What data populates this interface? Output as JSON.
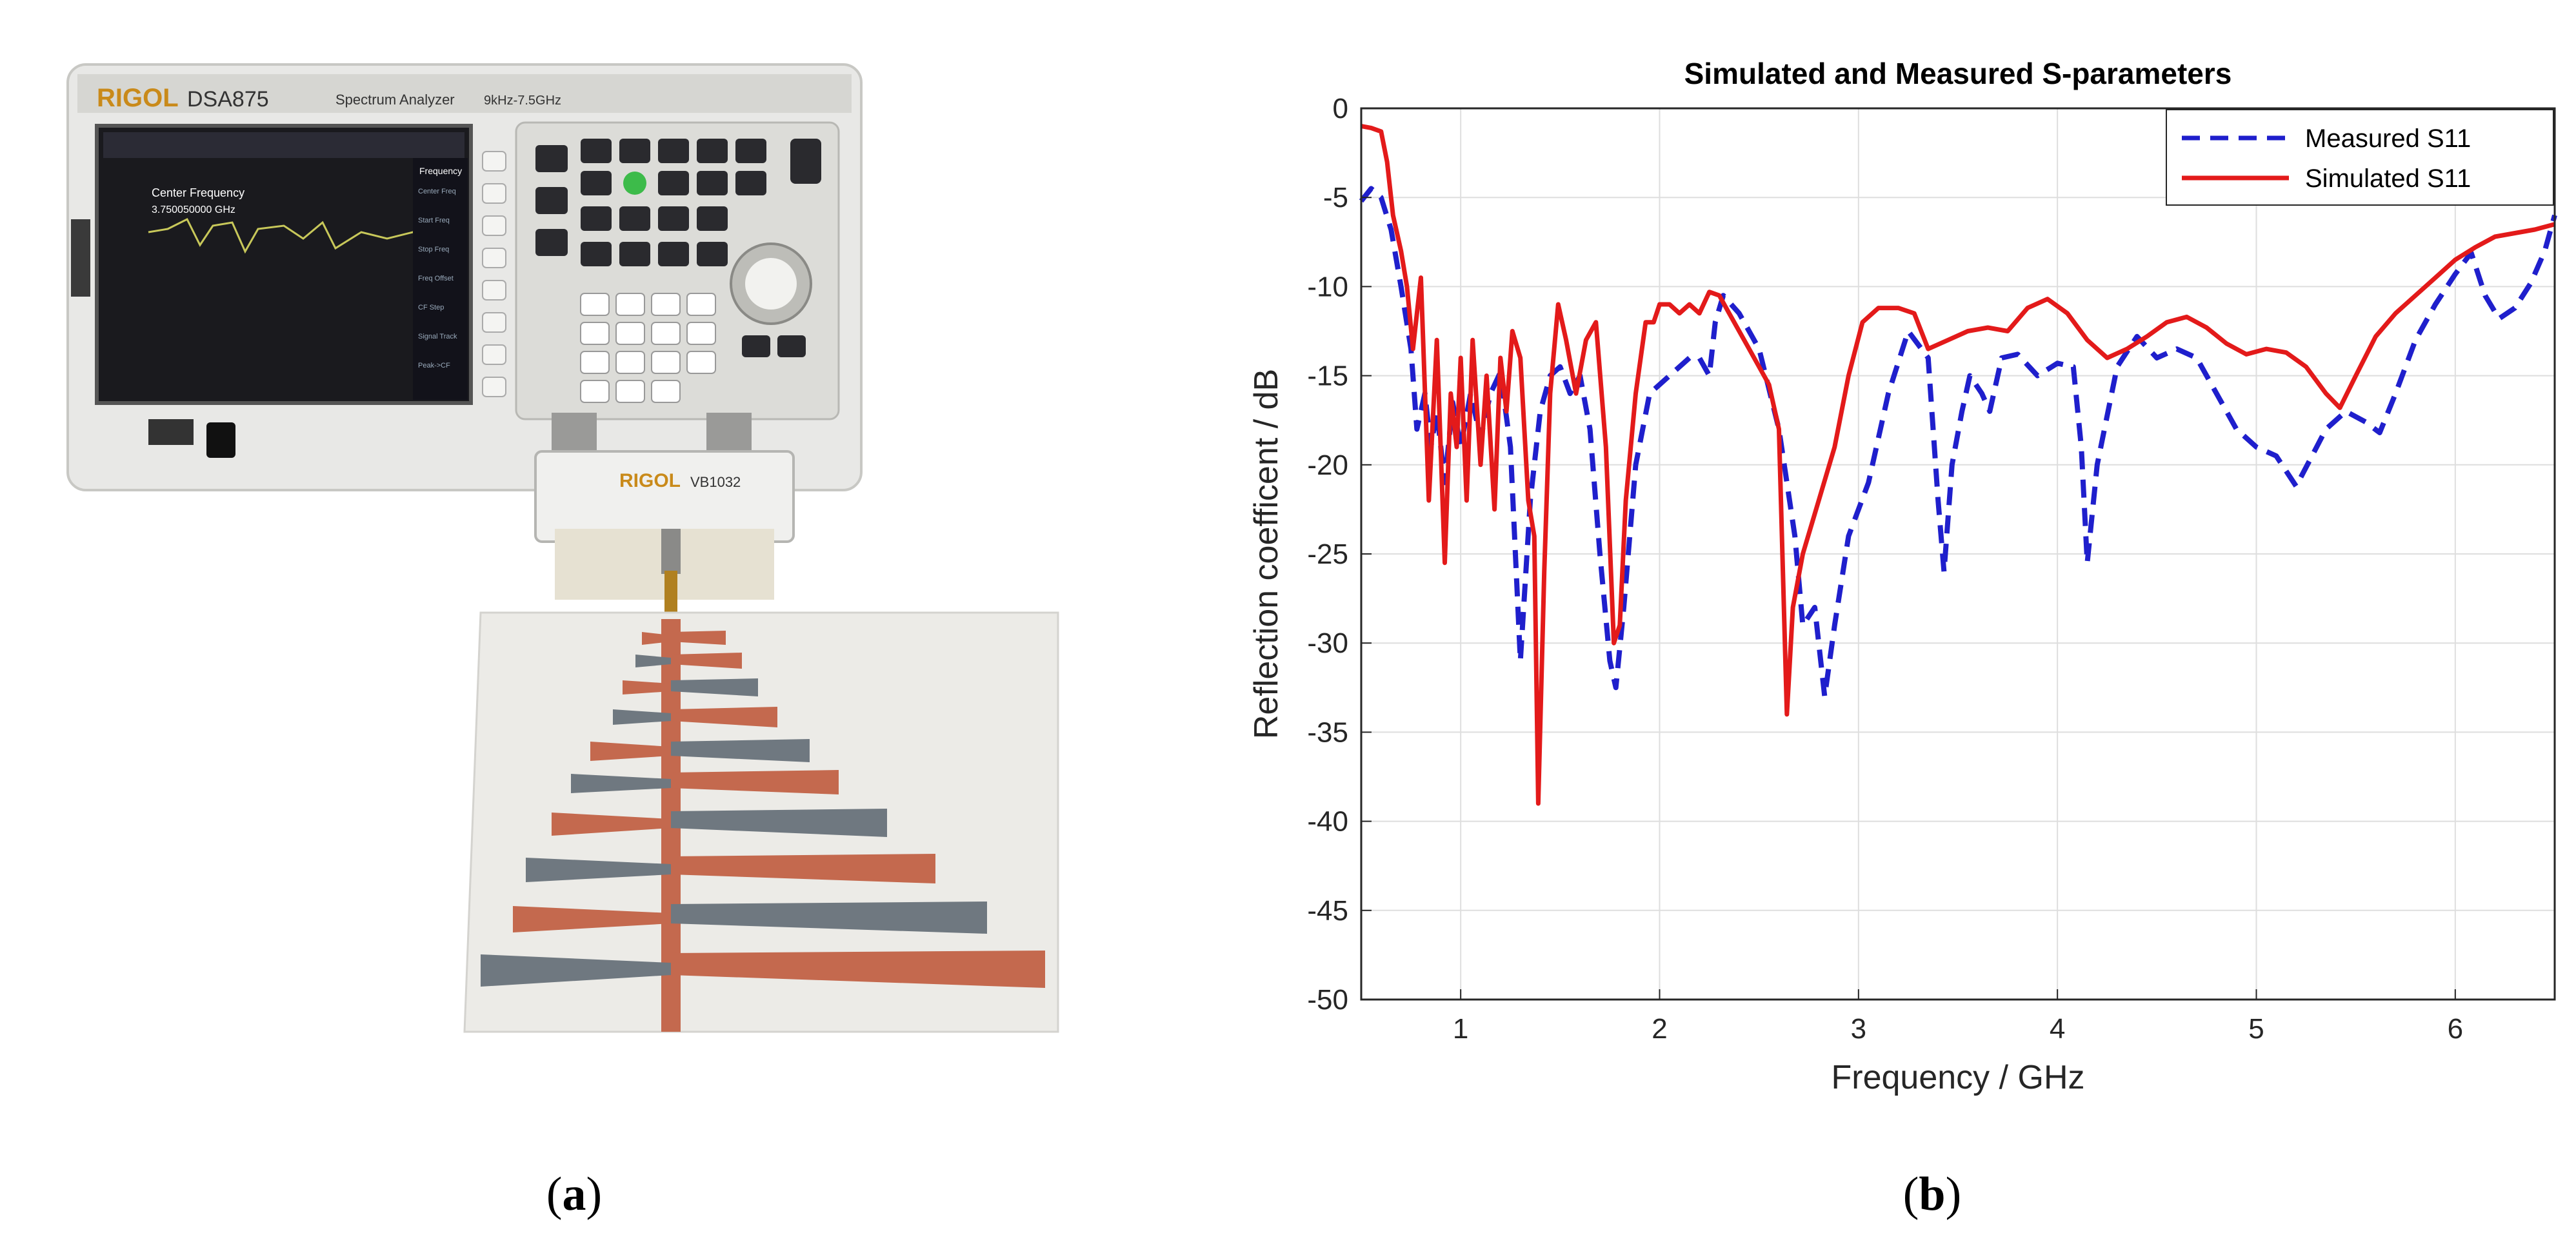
{
  "panels": {
    "a": {
      "caption": "a",
      "device_brand": "RIGOL",
      "device_model": "DSA875",
      "device_subtitle": "Spectrum Analyzer",
      "device_range": "9kHz-7.5GHz",
      "screen_center_label": "Center Frequency",
      "screen_center_value": "3.750050000 GHz",
      "screen_menu_title": "Frequency",
      "screen_menu_items": [
        "Center Freq",
        "Start Freq",
        "Stop Freq",
        "Freq Offset",
        "CF Step",
        "Signal Track",
        "Peak->CF"
      ],
      "bridge_brand": "RIGOL",
      "bridge_model": "VB1032"
    },
    "b": {
      "caption": "b"
    }
  },
  "chart_data": {
    "type": "line",
    "title": "Simulated and Measured S-parameters",
    "xlabel": "Frequency / GHz",
    "ylabel": "Reflection coefficent / dB",
    "xlim": [
      0.5,
      6.5
    ],
    "ylim": [
      -50,
      0
    ],
    "xticks": [
      1,
      2,
      3,
      4,
      5,
      6
    ],
    "yticks": [
      0,
      -5,
      -10,
      -15,
      -20,
      -25,
      -30,
      -35,
      -40,
      -45,
      -50
    ],
    "grid": true,
    "legend_position": "top-right",
    "colors": {
      "measured": "#1f1fcc",
      "simulated": "#e31a1a"
    },
    "series": [
      {
        "name": "Measured S11",
        "style": "dashed",
        "color": "#1f1fcc",
        "points": [
          [
            0.5,
            -5.2
          ],
          [
            0.55,
            -4.5
          ],
          [
            0.6,
            -5
          ],
          [
            0.65,
            -6.8
          ],
          [
            0.7,
            -10
          ],
          [
            0.75,
            -13.5
          ],
          [
            0.78,
            -18
          ],
          [
            0.82,
            -16
          ],
          [
            0.85,
            -19
          ],
          [
            0.88,
            -17
          ],
          [
            0.92,
            -21
          ],
          [
            0.96,
            -16.5
          ],
          [
            1.0,
            -19
          ],
          [
            1.05,
            -16
          ],
          [
            1.1,
            -18.5
          ],
          [
            1.15,
            -16
          ],
          [
            1.2,
            -14.8
          ],
          [
            1.25,
            -19
          ],
          [
            1.3,
            -31
          ],
          [
            1.35,
            -22
          ],
          [
            1.4,
            -17
          ],
          [
            1.45,
            -15
          ],
          [
            1.5,
            -14.5
          ],
          [
            1.55,
            -16
          ],
          [
            1.6,
            -15
          ],
          [
            1.65,
            -18
          ],
          [
            1.7,
            -25
          ],
          [
            1.75,
            -31
          ],
          [
            1.78,
            -32.5
          ],
          [
            1.82,
            -28
          ],
          [
            1.88,
            -20
          ],
          [
            1.95,
            -16
          ],
          [
            2.05,
            -15
          ],
          [
            2.15,
            -14
          ],
          [
            2.2,
            -14
          ],
          [
            2.25,
            -15
          ],
          [
            2.28,
            -12
          ],
          [
            2.32,
            -10.5
          ],
          [
            2.4,
            -11.5
          ],
          [
            2.5,
            -13.5
          ],
          [
            2.6,
            -18
          ],
          [
            2.68,
            -24
          ],
          [
            2.72,
            -29
          ],
          [
            2.78,
            -28
          ],
          [
            2.83,
            -33
          ],
          [
            2.88,
            -29
          ],
          [
            2.95,
            -24
          ],
          [
            3.05,
            -21
          ],
          [
            3.15,
            -16
          ],
          [
            3.25,
            -12.5
          ],
          [
            3.35,
            -14
          ],
          [
            3.4,
            -22
          ],
          [
            3.43,
            -26
          ],
          [
            3.47,
            -20
          ],
          [
            3.52,
            -17
          ],
          [
            3.56,
            -15
          ],
          [
            3.62,
            -16
          ],
          [
            3.66,
            -17
          ],
          [
            3.72,
            -14
          ],
          [
            3.8,
            -13.8
          ],
          [
            3.9,
            -15
          ],
          [
            4.0,
            -14.3
          ],
          [
            4.08,
            -14.5
          ],
          [
            4.12,
            -19
          ],
          [
            4.15,
            -25.5
          ],
          [
            4.2,
            -20
          ],
          [
            4.3,
            -14.5
          ],
          [
            4.4,
            -12.8
          ],
          [
            4.5,
            -14
          ],
          [
            4.6,
            -13.5
          ],
          [
            4.7,
            -14
          ],
          [
            4.8,
            -16
          ],
          [
            4.9,
            -18
          ],
          [
            5.0,
            -19
          ],
          [
            5.1,
            -19.5
          ],
          [
            5.2,
            -21.2
          ],
          [
            5.28,
            -19.5
          ],
          [
            5.35,
            -18
          ],
          [
            5.45,
            -17
          ],
          [
            5.55,
            -17.6
          ],
          [
            5.62,
            -18.2
          ],
          [
            5.7,
            -16
          ],
          [
            5.8,
            -13
          ],
          [
            5.9,
            -11
          ],
          [
            6.0,
            -9.3
          ],
          [
            6.08,
            -8.1
          ],
          [
            6.15,
            -10.5
          ],
          [
            6.22,
            -11.8
          ],
          [
            6.3,
            -11.2
          ],
          [
            6.38,
            -9.8
          ],
          [
            6.45,
            -8
          ],
          [
            6.5,
            -6
          ]
        ]
      },
      {
        "name": "Simulated S11",
        "style": "solid",
        "color": "#e31a1a",
        "points": [
          [
            0.5,
            -1
          ],
          [
            0.55,
            -1.1
          ],
          [
            0.6,
            -1.3
          ],
          [
            0.63,
            -3
          ],
          [
            0.66,
            -6
          ],
          [
            0.7,
            -8
          ],
          [
            0.73,
            -10
          ],
          [
            0.76,
            -13.5
          ],
          [
            0.8,
            -9.5
          ],
          [
            0.84,
            -22
          ],
          [
            0.88,
            -13
          ],
          [
            0.92,
            -25.5
          ],
          [
            0.95,
            -16
          ],
          [
            0.98,
            -19
          ],
          [
            1.0,
            -14
          ],
          [
            1.03,
            -22
          ],
          [
            1.06,
            -13
          ],
          [
            1.1,
            -20
          ],
          [
            1.13,
            -15
          ],
          [
            1.17,
            -22.5
          ],
          [
            1.2,
            -14
          ],
          [
            1.23,
            -17
          ],
          [
            1.26,
            -12.5
          ],
          [
            1.3,
            -14
          ],
          [
            1.34,
            -22
          ],
          [
            1.37,
            -24
          ],
          [
            1.39,
            -39
          ],
          [
            1.42,
            -26
          ],
          [
            1.45,
            -16
          ],
          [
            1.49,
            -11
          ],
          [
            1.53,
            -13
          ],
          [
            1.58,
            -16
          ],
          [
            1.63,
            -13
          ],
          [
            1.68,
            -12
          ],
          [
            1.73,
            -19
          ],
          [
            1.77,
            -30
          ],
          [
            1.8,
            -29
          ],
          [
            1.83,
            -22
          ],
          [
            1.88,
            -16
          ],
          [
            1.93,
            -12
          ],
          [
            1.97,
            -12
          ],
          [
            2.0,
            -11
          ],
          [
            2.05,
            -11
          ],
          [
            2.1,
            -11.5
          ],
          [
            2.15,
            -11
          ],
          [
            2.2,
            -11.5
          ],
          [
            2.25,
            -10.3
          ],
          [
            2.3,
            -10.5
          ],
          [
            2.35,
            -11.5
          ],
          [
            2.45,
            -13.5
          ],
          [
            2.55,
            -15.5
          ],
          [
            2.6,
            -18
          ],
          [
            2.64,
            -34
          ],
          [
            2.67,
            -28
          ],
          [
            2.72,
            -25
          ],
          [
            2.8,
            -22
          ],
          [
            2.88,
            -19
          ],
          [
            2.95,
            -15
          ],
          [
            3.02,
            -12
          ],
          [
            3.1,
            -11.2
          ],
          [
            3.2,
            -11.2
          ],
          [
            3.28,
            -11.5
          ],
          [
            3.35,
            -13.5
          ],
          [
            3.45,
            -13
          ],
          [
            3.55,
            -12.5
          ],
          [
            3.65,
            -12.3
          ],
          [
            3.75,
            -12.5
          ],
          [
            3.85,
            -11.2
          ],
          [
            3.95,
            -10.7
          ],
          [
            4.05,
            -11.5
          ],
          [
            4.15,
            -13
          ],
          [
            4.25,
            -14
          ],
          [
            4.35,
            -13.5
          ],
          [
            4.45,
            -12.8
          ],
          [
            4.55,
            -12
          ],
          [
            4.65,
            -11.7
          ],
          [
            4.75,
            -12.3
          ],
          [
            4.85,
            -13.2
          ],
          [
            4.95,
            -13.8
          ],
          [
            5.05,
            -13.5
          ],
          [
            5.15,
            -13.7
          ],
          [
            5.25,
            -14.5
          ],
          [
            5.35,
            -16
          ],
          [
            5.42,
            -16.8
          ],
          [
            5.5,
            -15
          ],
          [
            5.6,
            -12.8
          ],
          [
            5.7,
            -11.5
          ],
          [
            5.8,
            -10.5
          ],
          [
            5.9,
            -9.5
          ],
          [
            6.0,
            -8.5
          ],
          [
            6.1,
            -7.8
          ],
          [
            6.2,
            -7.2
          ],
          [
            6.3,
            -7
          ],
          [
            6.4,
            -6.8
          ],
          [
            6.5,
            -6.5
          ]
        ]
      }
    ]
  }
}
